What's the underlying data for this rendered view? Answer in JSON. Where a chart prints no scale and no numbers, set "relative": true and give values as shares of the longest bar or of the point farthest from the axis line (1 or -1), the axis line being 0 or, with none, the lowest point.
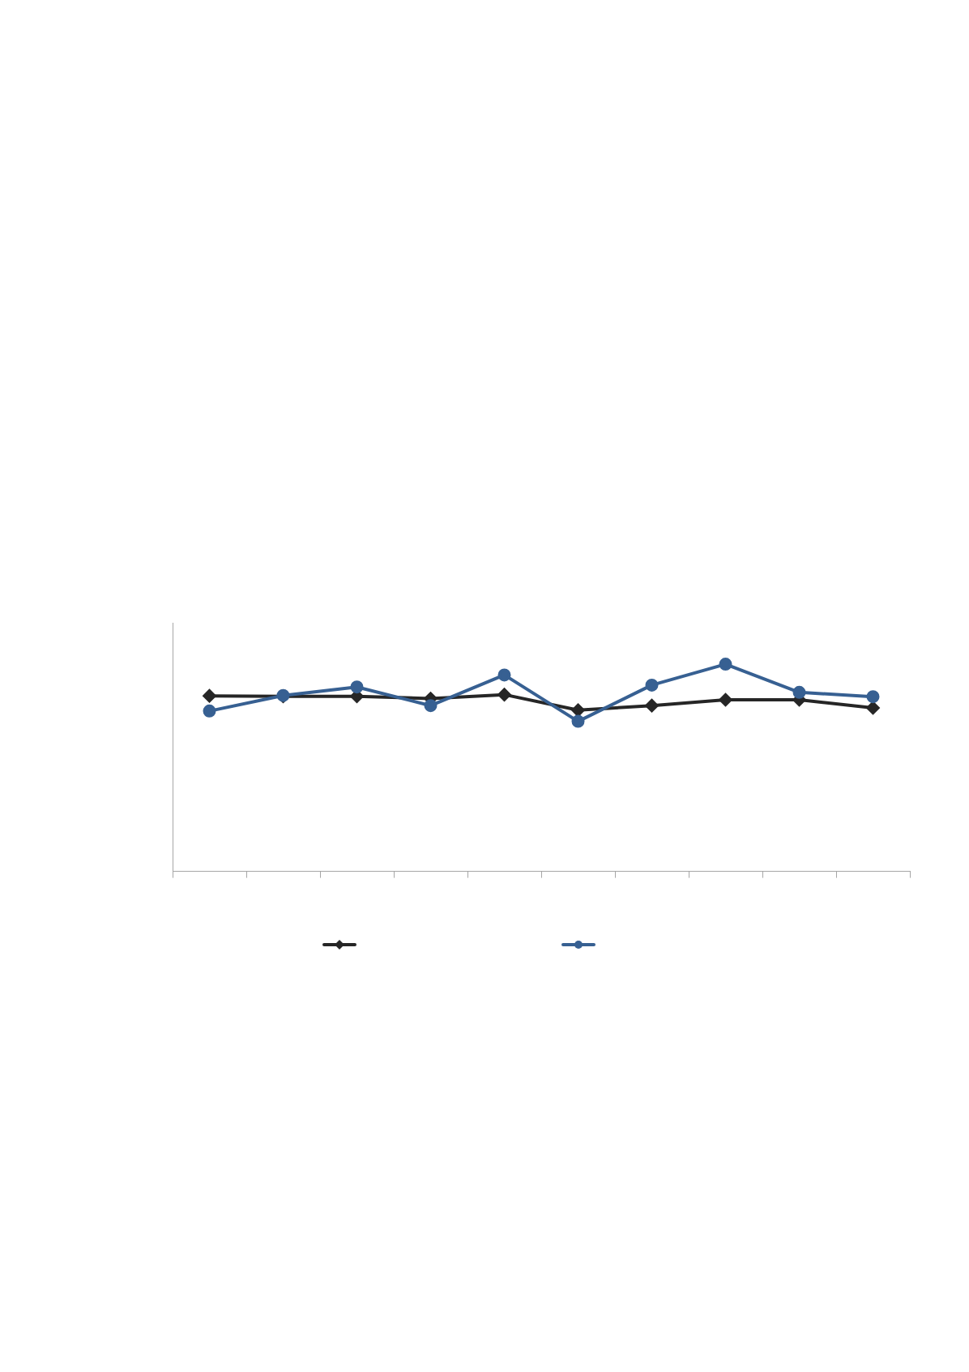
{
  "chart_data": {
    "type": "line",
    "relative": true,
    "categories": [
      null,
      null,
      null,
      null,
      null,
      null,
      null,
      null,
      null,
      null
    ],
    "grid": false,
    "series": [
      {
        "color": "#262626",
        "marker": "diamond",
        "values": [
          0.847,
          0.845,
          0.845,
          0.834,
          0.853,
          0.778,
          0.8,
          0.828,
          0.828,
          0.789
        ]
      },
      {
        "color": "#376092",
        "marker": "circle",
        "values": [
          0.774,
          0.849,
          0.89,
          0.8,
          0.948,
          0.724,
          0.899,
          1,
          0.864,
          0.843
        ]
      }
    ]
  }
}
